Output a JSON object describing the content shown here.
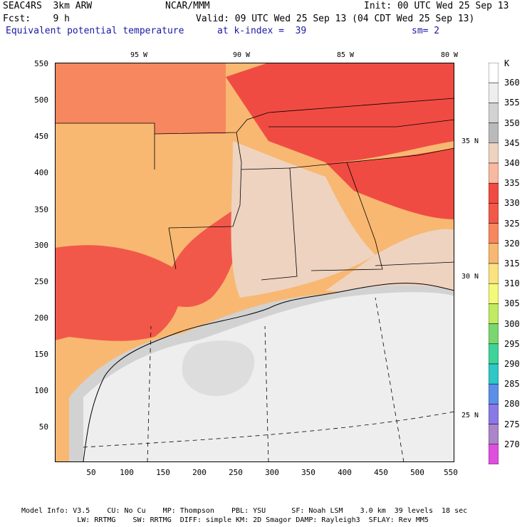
{
  "header": {
    "model": "SEAC4RS",
    "resolution": "3km ARW",
    "org": "NCAR/MMM",
    "init": "Init: 00 UTC Wed 25 Sep 13",
    "fcst_label": "Fcst:",
    "fcst_value": "9 h",
    "valid": "Valid: 09 UTC Wed 25 Sep 13 (04 CDT Wed 25 Sep 13)",
    "field": "Equivalent potential temperature",
    "level": "at k-index =  39",
    "smooth": "sm= 2"
  },
  "map": {
    "longitude_labels": [
      "95 W",
      "90 W",
      "85 W",
      "80 W"
    ],
    "latitude_labels": [
      "35 N",
      "30 N",
      "25 N"
    ],
    "x_ticks": [
      "50",
      "100",
      "150",
      "200",
      "250",
      "300",
      "350",
      "400",
      "450",
      "500",
      "550"
    ],
    "y_ticks": [
      "550",
      "500",
      "450",
      "400",
      "350",
      "300",
      "250",
      "200",
      "150",
      "100",
      "50"
    ]
  },
  "colorbar": {
    "unit": "K",
    "levels": [
      "360",
      "355",
      "350",
      "345",
      "340",
      "335",
      "330",
      "325",
      "320",
      "315",
      "310",
      "305",
      "300",
      "295",
      "290",
      "285",
      "280",
      "275",
      "270"
    ],
    "colors": [
      "#ffffff",
      "#eeeeee",
      "#d2d2d2",
      "#bababa",
      "#eed3c0",
      "#f7b9a0",
      "#f04b42",
      "#f2584a",
      "#f7875f",
      "#f8b872",
      "#fbe280",
      "#f4f97a",
      "#c1ea63",
      "#7ad770",
      "#3fd39a",
      "#2fc8c6",
      "#5c8fe7",
      "#8a78e6",
      "#ac84c9",
      "#df4fdf"
    ]
  },
  "footer": {
    "line1": "Model Info: V3.5    CU: No Cu    MP: Thompson    PBL: YSU      SF: Noah LSM    3.0 km  39 levels  18 sec",
    "line2": "             LW: RRTMG    SW: RRTMG  DIFF: simple KM: 2D Smagor DAMP: Rayleigh3  SFLAY: Rev MM5"
  }
}
